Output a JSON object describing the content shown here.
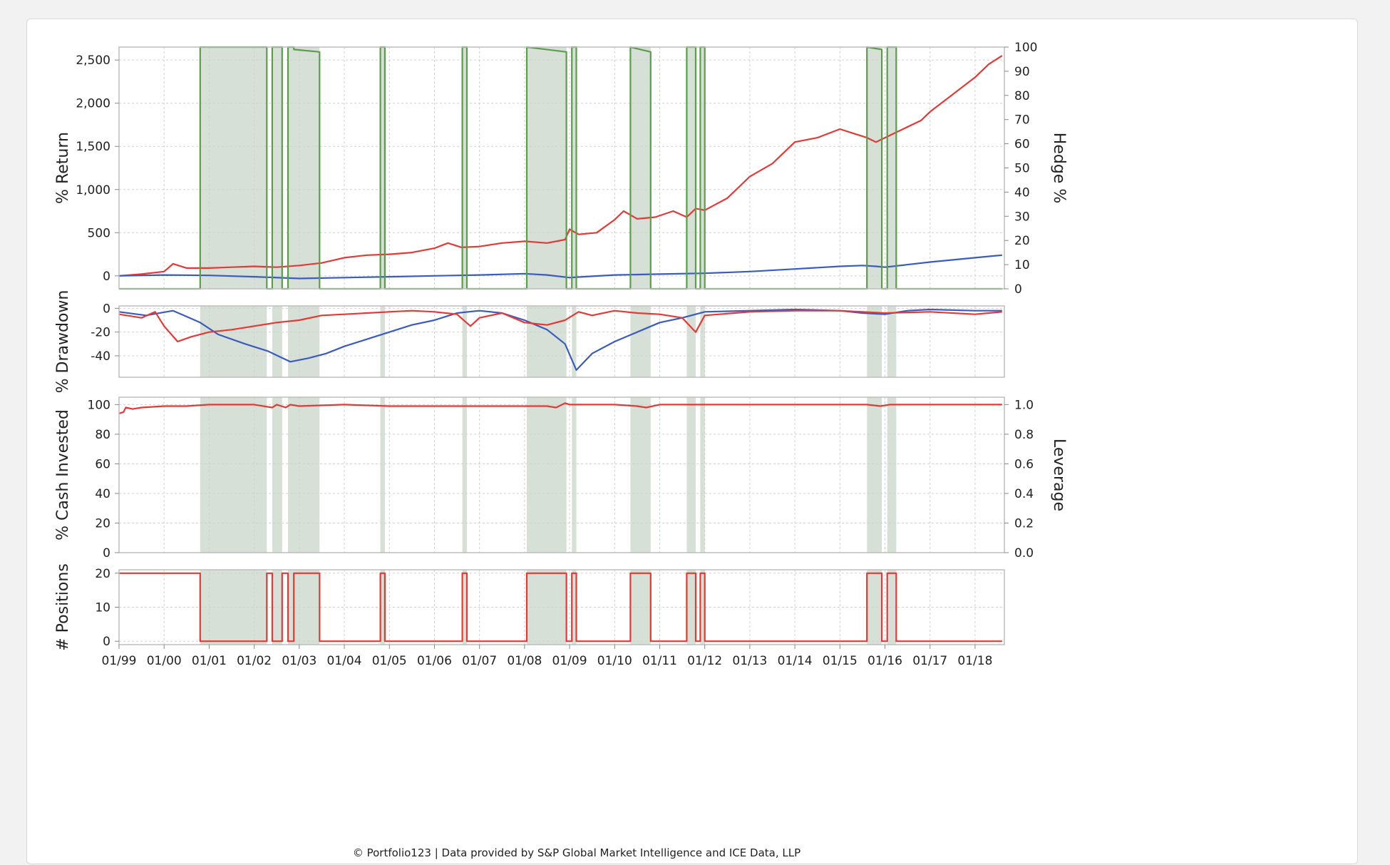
{
  "chart_data": [
    {
      "type": "line",
      "panel": "return",
      "ylabel": "% Return",
      "y2label": "Hedge %",
      "ylim": [
        -150,
        2650
      ],
      "yticks": [
        0,
        500,
        1000,
        1500,
        2000,
        2500
      ],
      "ytick_labels": [
        "0",
        "500",
        "1,000",
        "1,500",
        "2,000",
        "2,500"
      ],
      "y2lim": [
        0,
        100
      ],
      "y2ticks": [
        0,
        10,
        20,
        30,
        40,
        50,
        60,
        70,
        80,
        90,
        100
      ],
      "series": [
        {
          "color": "#e53935",
          "x": [
            1999.0,
            1999.5,
            2000.0,
            2000.2,
            2000.5,
            2001.0,
            2001.5,
            2002.0,
            2002.5,
            2003.0,
            2003.5,
            2004.0,
            2004.5,
            2005.0,
            2005.5,
            2006.0,
            2006.3,
            2006.6,
            2007.0,
            2007.5,
            2008.0,
            2008.5,
            2008.9,
            2009.0,
            2009.2,
            2009.6,
            2010.0,
            2010.2,
            2010.5,
            2010.9,
            2011.3,
            2011.6,
            2011.8,
            2012.0,
            2012.5,
            2013.0,
            2013.5,
            2014.0,
            2014.5,
            2015.0,
            2015.3,
            2015.6,
            2015.8,
            2016.0,
            2016.4,
            2016.8,
            2017.0,
            2017.5,
            2018.0,
            2018.3,
            2018.6
          ],
          "y": [
            0,
            20,
            50,
            140,
            90,
            90,
            100,
            110,
            100,
            120,
            150,
            210,
            240,
            250,
            270,
            320,
            380,
            330,
            340,
            380,
            400,
            380,
            420,
            540,
            480,
            500,
            650,
            750,
            660,
            680,
            750,
            680,
            780,
            760,
            900,
            1150,
            1300,
            1550,
            1600,
            1700,
            1650,
            1600,
            1550,
            1600,
            1700,
            1800,
            1900,
            2100,
            2300,
            2450,
            2550
          ]
        },
        {
          "color": "#3a5bbf",
          "x": [
            1999.0,
            2000.0,
            2001.0,
            2002.0,
            2003.0,
            2004.0,
            2005.0,
            2006.0,
            2007.0,
            2008.0,
            2008.5,
            2009.0,
            2009.3,
            2010.0,
            2011.0,
            2012.0,
            2013.0,
            2014.0,
            2015.0,
            2015.5,
            2015.8,
            2016.0,
            2017.0,
            2018.0,
            2018.6
          ],
          "y": [
            0,
            10,
            5,
            -10,
            -30,
            -20,
            -10,
            0,
            10,
            25,
            10,
            -20,
            -10,
            10,
            20,
            30,
            50,
            80,
            110,
            120,
            110,
            100,
            160,
            210,
            240
          ]
        },
        {
          "color": "#5a9e4a",
          "fill": "#d6e0d6",
          "axis": "y2",
          "x": [
            1999.0,
            2000.8,
            2000.8,
            2002.28,
            2002.28,
            2002.4,
            2002.4,
            2002.62,
            2002.62,
            2002.75,
            2002.75,
            2002.88,
            2002.88,
            2003.45,
            2003.45,
            2004.8,
            2004.8,
            2004.9,
            2004.9,
            2006.62,
            2006.62,
            2006.72,
            2006.72,
            2008.05,
            2008.05,
            2008.93,
            2008.93,
            2009.05,
            2009.05,
            2009.15,
            2009.15,
            2010.35,
            2010.35,
            2010.8,
            2010.8,
            2011.6,
            2011.6,
            2011.8,
            2011.8,
            2011.9,
            2011.9,
            2012.0,
            2012.0,
            2015.6,
            2015.6,
            2015.93,
            2015.93,
            2016.05,
            2016.05,
            2016.25,
            2016.25,
            2018.6
          ],
          "y": [
            0,
            0,
            100,
            100,
            0,
            0,
            100,
            100,
            0,
            0,
            100,
            100,
            99,
            98,
            0,
            0,
            100,
            100,
            0,
            0,
            100,
            100,
            0,
            0,
            100,
            98,
            0,
            0,
            100,
            100,
            0,
            0,
            100,
            98,
            0,
            0,
            100,
            100,
            0,
            0,
            100,
            100,
            0,
            0,
            100,
            99,
            0,
            0,
            100,
            100,
            0,
            0
          ]
        }
      ]
    },
    {
      "type": "line",
      "panel": "drawdown",
      "ylabel": "% Drawdown",
      "ylim": [
        -58,
        2
      ],
      "yticks": [
        0,
        -20,
        -40
      ],
      "series": [
        {
          "color": "#3a5bbf",
          "x": [
            1999.0,
            1999.6,
            2000.2,
            2000.8,
            2001.2,
            2001.8,
            2002.3,
            2002.8,
            2003.2,
            2003.6,
            2004.0,
            2004.5,
            2005.0,
            2005.5,
            2006.0,
            2006.5,
            2007.0,
            2007.5,
            2008.0,
            2008.5,
            2008.9,
            2009.15,
            2009.5,
            2010.0,
            2010.5,
            2011.0,
            2011.5,
            2012.0,
            2013.0,
            2014.0,
            2015.0,
            2015.5,
            2016.0,
            2016.5,
            2017.0,
            2018.0,
            2018.6
          ],
          "y": [
            -3,
            -6,
            -2,
            -12,
            -22,
            -30,
            -36,
            -45,
            -42,
            -38,
            -32,
            -26,
            -20,
            -14,
            -10,
            -4,
            -2,
            -4,
            -10,
            -18,
            -30,
            -52,
            -38,
            -28,
            -20,
            -12,
            -8,
            -3,
            -2,
            -1,
            -2,
            -4,
            -5,
            -2,
            -1,
            -2,
            -2
          ]
        },
        {
          "color": "#e53935",
          "x": [
            1999.0,
            1999.5,
            1999.8,
            2000.0,
            2000.3,
            2000.6,
            2001.0,
            2001.5,
            2002.0,
            2002.5,
            2003.0,
            2003.5,
            2004.0,
            2004.5,
            2005.0,
            2005.5,
            2006.0,
            2006.5,
            2006.8,
            2007.0,
            2007.5,
            2008.0,
            2008.5,
            2008.9,
            2009.2,
            2009.5,
            2010.0,
            2010.5,
            2011.0,
            2011.5,
            2011.8,
            2012.0,
            2013.0,
            2014.0,
            2015.0,
            2015.5,
            2016.0,
            2017.0,
            2018.0,
            2018.6
          ],
          "y": [
            -5,
            -8,
            -3,
            -15,
            -28,
            -24,
            -20,
            -18,
            -15,
            -12,
            -10,
            -6,
            -5,
            -4,
            -3,
            -2,
            -3,
            -5,
            -15,
            -8,
            -4,
            -12,
            -14,
            -10,
            -3,
            -6,
            -2,
            -4,
            -5,
            -8,
            -20,
            -6,
            -3,
            -2,
            -2,
            -3,
            -4,
            -3,
            -5,
            -3
          ]
        }
      ]
    },
    {
      "type": "line",
      "panel": "cash",
      "ylabel": "% Cash Invested",
      "y2label": "Leverage",
      "ylim": [
        0,
        105
      ],
      "yticks": [
        0,
        20,
        40,
        60,
        80,
        100
      ],
      "y2lim": [
        0.0,
        1.05
      ],
      "y2ticks": [
        "0.0",
        "0.2",
        "0.4",
        "0.6",
        "0.8",
        "1.0"
      ],
      "series": [
        {
          "color": "#e53935",
          "x": [
            1999.0,
            1999.1,
            1999.15,
            1999.3,
            1999.5,
            2000.0,
            2000.5,
            2001.0,
            2002.0,
            2002.4,
            2002.5,
            2002.7,
            2002.8,
            2003.0,
            2004.0,
            2005.0,
            2006.0,
            2007.0,
            2008.0,
            2008.5,
            2008.7,
            2008.9,
            2009.0,
            2010.0,
            2010.5,
            2010.7,
            2011.0,
            2012.0,
            2015.6,
            2015.9,
            2016.1,
            2018.6
          ],
          "y": [
            94,
            95,
            98,
            97,
            98,
            99,
            99,
            100,
            100,
            98,
            100,
            98,
            100,
            99,
            100,
            99,
            99,
            99,
            99,
            99,
            98,
            101,
            100,
            100,
            99,
            98,
            100,
            100,
            100,
            99,
            100,
            100
          ]
        }
      ]
    },
    {
      "type": "line",
      "panel": "positions",
      "ylabel": "# Positions",
      "ylim": [
        -1,
        21
      ],
      "yticks": [
        0,
        10,
        20
      ],
      "series": [
        {
          "color": "#e53935",
          "x": [
            1999.0,
            2000.8,
            2000.8,
            2002.28,
            2002.28,
            2002.4,
            2002.4,
            2002.62,
            2002.62,
            2002.75,
            2002.75,
            2002.88,
            2002.88,
            2003.45,
            2003.45,
            2004.8,
            2004.8,
            2004.9,
            2004.9,
            2006.62,
            2006.62,
            2006.72,
            2006.72,
            2008.05,
            2008.05,
            2008.93,
            2008.93,
            2009.05,
            2009.05,
            2009.15,
            2009.15,
            2010.35,
            2010.35,
            2010.8,
            2010.8,
            2011.6,
            2011.6,
            2011.8,
            2011.8,
            2011.9,
            2011.9,
            2012.0,
            2012.0,
            2015.6,
            2015.6,
            2015.93,
            2015.93,
            2016.05,
            2016.05,
            2016.25,
            2016.25,
            2018.6
          ],
          "y": [
            20,
            20,
            0,
            0,
            20,
            20,
            0,
            0,
            20,
            20,
            0,
            0,
            20,
            20,
            0,
            0,
            20,
            20,
            0,
            0,
            20,
            20,
            0,
            0,
            20,
            20,
            0,
            0,
            20,
            20,
            0,
            0,
            20,
            20,
            0,
            0,
            20,
            20,
            0,
            0,
            20,
            20,
            0,
            0,
            20,
            20,
            0,
            0,
            20,
            20,
            0,
            0
          ]
        }
      ]
    }
  ],
  "hedge_periods": [
    [
      2000.8,
      2002.28
    ],
    [
      2002.4,
      2002.62
    ],
    [
      2002.75,
      2003.45
    ],
    [
      2004.8,
      2004.9
    ],
    [
      2006.62,
      2006.72
    ],
    [
      2008.05,
      2008.93
    ],
    [
      2009.05,
      2009.15
    ],
    [
      2010.35,
      2010.8
    ],
    [
      2011.6,
      2011.8
    ],
    [
      2011.9,
      2012.0
    ],
    [
      2015.6,
      2015.93
    ],
    [
      2016.05,
      2016.25
    ]
  ],
  "x_axis": {
    "xlim": [
      1999.0,
      2018.65
    ],
    "ticks": [
      1999,
      2000,
      2001,
      2002,
      2003,
      2004,
      2005,
      2006,
      2007,
      2008,
      2009,
      2010,
      2011,
      2012,
      2013,
      2014,
      2015,
      2016,
      2017,
      2018
    ],
    "tick_labels": [
      "01/99",
      "01/00",
      "01/01",
      "01/02",
      "01/03",
      "01/04",
      "01/05",
      "01/06",
      "01/07",
      "01/08",
      "01/09",
      "01/10",
      "01/11",
      "01/12",
      "01/13",
      "01/14",
      "01/15",
      "01/16",
      "01/17",
      "01/18"
    ]
  },
  "grid": true,
  "footer": "© Portfolio123 | Data provided by S&P Global Market Intelligence and ICE Data, LLP",
  "colors": {
    "portfolio": "#e53935",
    "benchmark": "#3a5bbf",
    "hedge_line": "#5a9e4a",
    "hedge_fill": "#d6e0d6",
    "grid": "#d0d0d0"
  }
}
